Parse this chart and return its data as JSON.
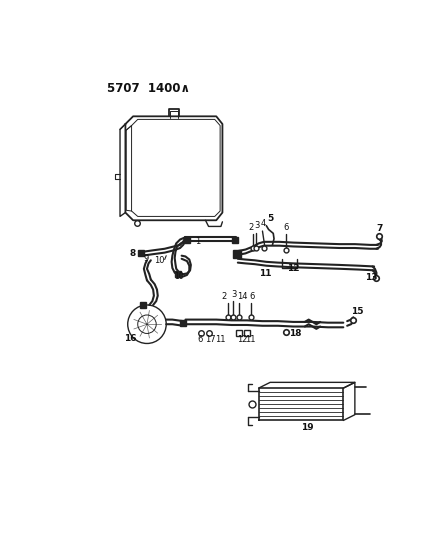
{
  "title_code": "5707  1400∧",
  "bg_color": "#ffffff",
  "line_color": "#222222",
  "text_color": "#111111",
  "fig_width": 4.28,
  "fig_height": 5.33,
  "dpi": 100
}
